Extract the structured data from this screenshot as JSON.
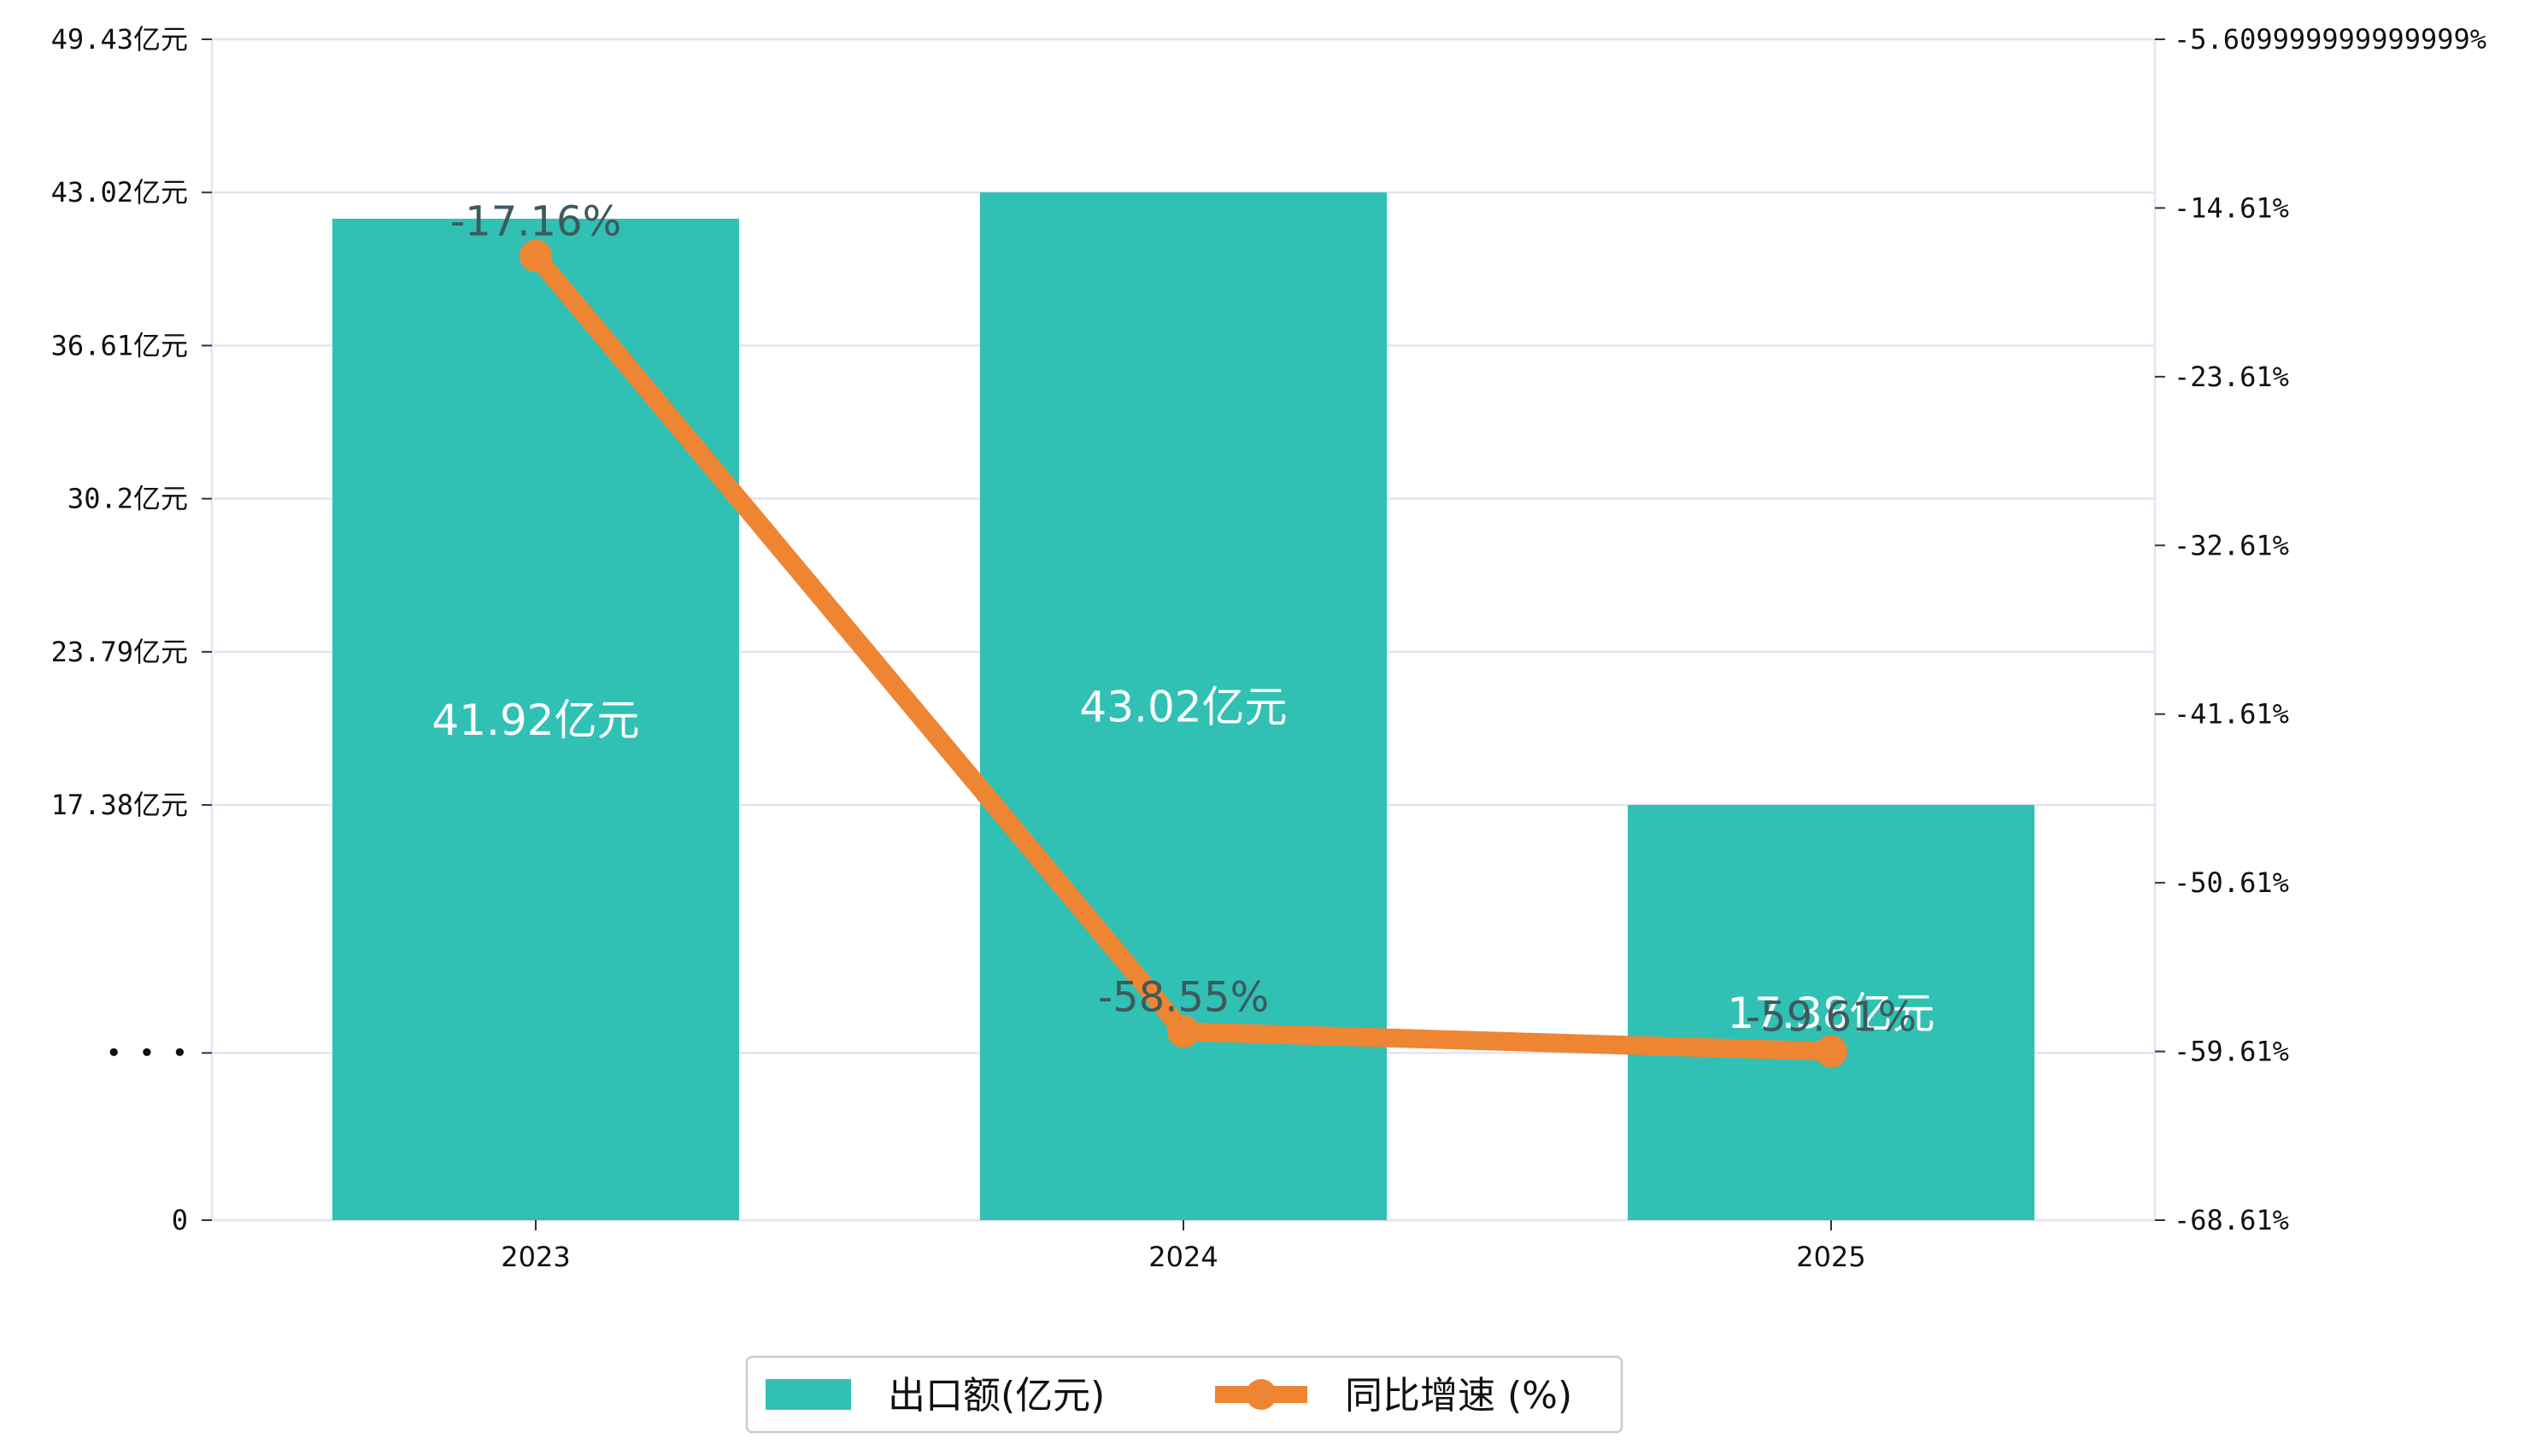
{
  "chart_data": {
    "type": "bar",
    "categories": [
      "2023",
      "2024",
      "2025"
    ],
    "series": [
      {
        "name": "出口额(亿元)",
        "type": "bar",
        "axis": "left",
        "color": "#30c0b4",
        "values": [
          41.92,
          43.02,
          17.38
        ],
        "labels": [
          "41.92亿元",
          "43.02亿元",
          "17.38亿元"
        ]
      },
      {
        "name": "同比增速 (%)",
        "type": "line",
        "axis": "right",
        "color": "#ee8533",
        "values": [
          -17.16,
          -58.55,
          -59.61
        ],
        "labels": [
          "-17.16%",
          "-58.55%",
          "-59.61%"
        ]
      }
    ],
    "y_left": {
      "ylim": [
        0,
        49.43
      ],
      "ticks": [
        0,
        7.0,
        17.38,
        23.79,
        30.2,
        36.61,
        43.02,
        49.43
      ],
      "tick_labels": [
        "0",
        "• • •",
        "17.38亿元",
        "23.79亿元",
        "30.2亿元",
        "36.61亿元",
        "43.02亿元",
        "49.43亿元"
      ]
    },
    "y_right": {
      "ylim": [
        -68.61,
        -5.61
      ],
      "ticks": [
        -68.61,
        -59.61,
        -50.61,
        -41.61,
        -32.61,
        -23.61,
        -14.61,
        -5.61
      ],
      "tick_labels": [
        "-68.61%",
        "-59.61%",
        "-50.61%",
        "-41.61%",
        "-32.61%",
        "-23.61%",
        "-14.61%",
        "-5.609999999999999%"
      ]
    },
    "grid": true,
    "legend_position": "bottom-center",
    "title": "",
    "xlabel": "",
    "ylabel": ""
  }
}
